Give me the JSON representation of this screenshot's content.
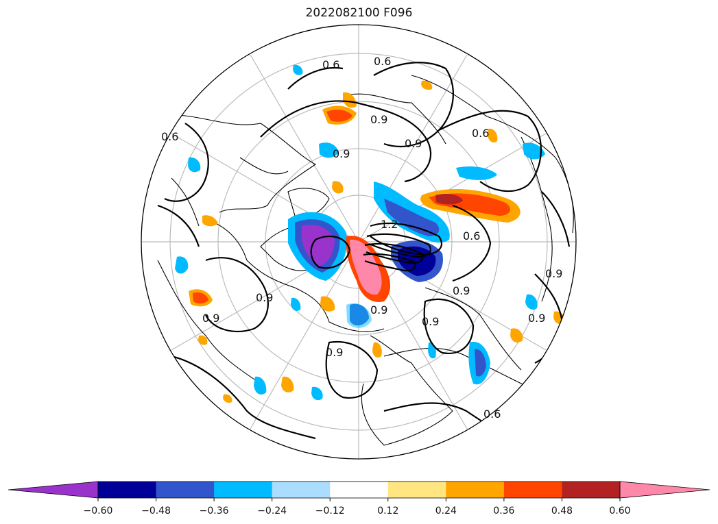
{
  "title": "2022082100 F096",
  "colorbar": {
    "colors": [
      "#9933cc",
      "#000099",
      "#3355cc",
      "#00bbff",
      "#aaddff",
      "#ffffff",
      "#ffe680",
      "#ffa500",
      "#ff4500",
      "#b22222",
      "#ff88aa"
    ],
    "tick_labels": [
      "−0.60",
      "−0.48",
      "−0.36",
      "−0.24",
      "−0.12",
      "0.12",
      "0.24",
      "0.36",
      "0.48",
      "0.60"
    ],
    "extend": "both"
  },
  "contour_labels": [
    "0.6",
    "0.6",
    "0.6",
    "0.9",
    "0.9",
    "0.9",
    "0.6",
    "0.9",
    "0.9",
    "0.9",
    "0.9",
    "1.2",
    "0.9",
    "0.9",
    "0.9",
    "0.6",
    "0.9",
    "0.6"
  ],
  "projection": "north-polar-stereographic"
}
